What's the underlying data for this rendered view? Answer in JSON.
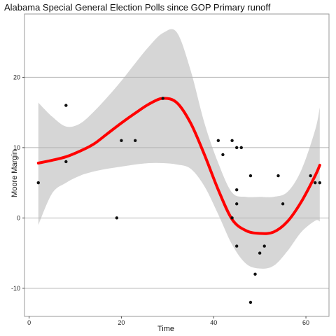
{
  "chart_data": {
    "type": "scatter",
    "title": "Alabama Special General Election Polls since GOP Primary runoff",
    "xlabel": "Time",
    "ylabel": "Moore Margin",
    "xlim": [
      -1,
      65
    ],
    "ylim": [
      -14,
      29
    ],
    "xticks": [
      0,
      20,
      40,
      60
    ],
    "yticks": [
      -10,
      0,
      10,
      20
    ],
    "grid": "horizontal",
    "background": "#ffffff",
    "points": [
      {
        "x": 2,
        "y": 5
      },
      {
        "x": 8,
        "y": 16
      },
      {
        "x": 8,
        "y": 8
      },
      {
        "x": 19,
        "y": 0
      },
      {
        "x": 20,
        "y": 11
      },
      {
        "x": 23,
        "y": 11
      },
      {
        "x": 29,
        "y": 17
      },
      {
        "x": 41,
        "y": 11
      },
      {
        "x": 42,
        "y": 9
      },
      {
        "x": 44,
        "y": 11
      },
      {
        "x": 44,
        "y": 0
      },
      {
        "x": 45,
        "y": 10
      },
      {
        "x": 45,
        "y": 4
      },
      {
        "x": 45,
        "y": 2
      },
      {
        "x": 45,
        "y": -4
      },
      {
        "x": 46,
        "y": 10
      },
      {
        "x": 48,
        "y": 6
      },
      {
        "x": 48,
        "y": -12
      },
      {
        "x": 49,
        "y": -8
      },
      {
        "x": 50,
        "y": -5
      },
      {
        "x": 51,
        "y": -4
      },
      {
        "x": 54,
        "y": 6
      },
      {
        "x": 55,
        "y": 2
      },
      {
        "x": 61,
        "y": 6
      },
      {
        "x": 62,
        "y": 5
      },
      {
        "x": 63,
        "y": 5
      }
    ],
    "smooth": {
      "x": [
        2,
        5,
        8,
        11,
        14,
        17,
        20,
        23,
        26,
        29,
        32,
        35,
        38,
        41,
        44,
        47,
        50,
        53,
        56,
        59,
        62,
        63
      ],
      "y": [
        7.8,
        8.2,
        8.7,
        9.5,
        10.5,
        12.0,
        13.5,
        14.9,
        16.2,
        17.0,
        16.4,
        13.5,
        9.0,
        4.0,
        -0.2,
        -1.8,
        -2.2,
        -2.0,
        -0.5,
        2.3,
        6.0,
        7.5
      ],
      "lower": [
        -1.0,
        3.5,
        5.0,
        6.0,
        6.6,
        7.0,
        7.3,
        7.6,
        7.8,
        7.8,
        7.6,
        7.0,
        4.5,
        0.5,
        -3.8,
        -6.5,
        -7.2,
        -6.8,
        -4.7,
        -2.0,
        -0.4,
        -0.5
      ],
      "upper": [
        16.4,
        14.4,
        13.0,
        13.4,
        15.1,
        17.2,
        19.5,
        22.0,
        24.4,
        26.3,
        26.4,
        21.0,
        13.5,
        7.8,
        3.6,
        3.0,
        3.0,
        3.0,
        3.7,
        6.8,
        12.5,
        15.7
      ]
    },
    "colors": {
      "points": "#111111",
      "smooth": "#ff0000",
      "band": "#d6d6d6",
      "grid": "#b5b5b5",
      "axis": "#444444"
    }
  }
}
